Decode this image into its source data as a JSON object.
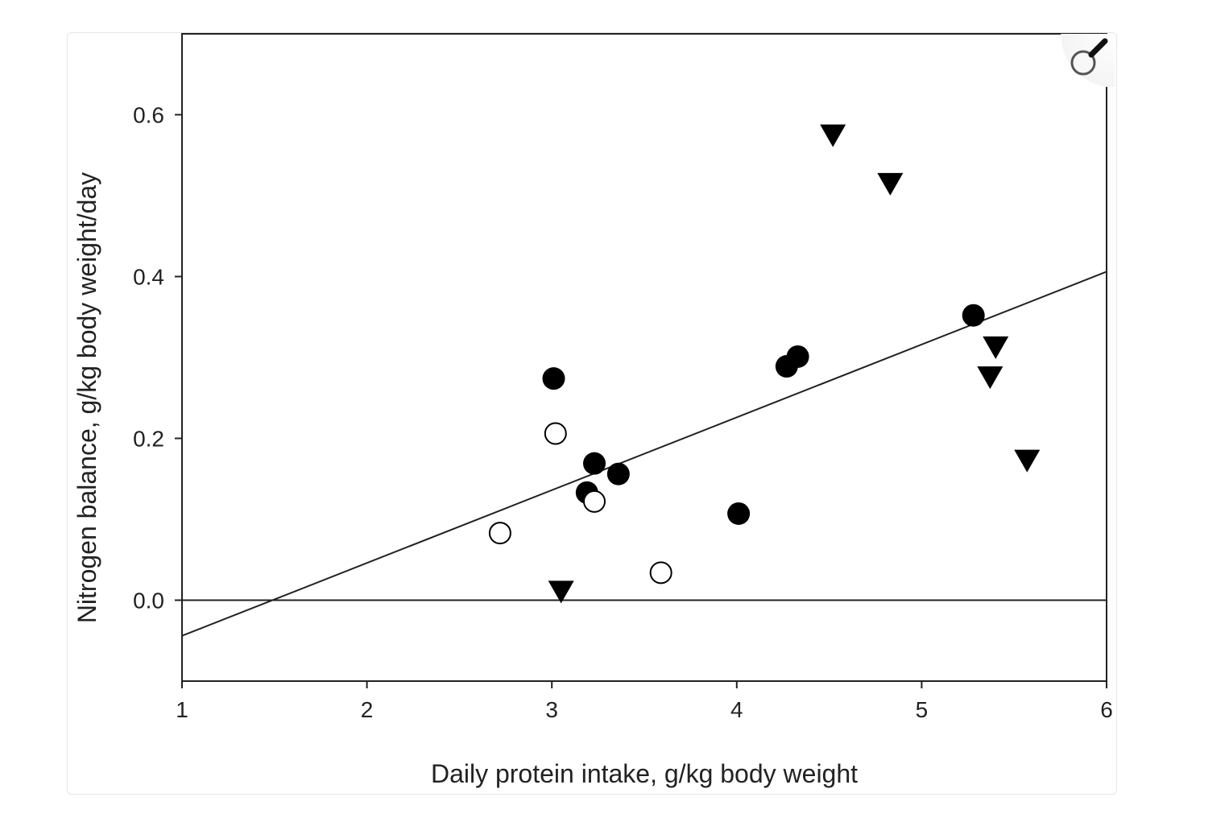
{
  "chart_data": {
    "type": "scatter",
    "title": "",
    "xlabel": "Daily protein intake, g/kg body weight",
    "ylabel": "Nitrogen balance, g/kg body weight/day",
    "xlim": [
      1,
      6
    ],
    "ylim": [
      -0.1,
      0.7
    ],
    "xticks": [
      "1",
      "2",
      "3",
      "4",
      "5",
      "6"
    ],
    "yticks": [
      "0.0",
      "0.2",
      "0.4",
      "0.6"
    ],
    "grid": false,
    "series": [
      {
        "name": "filled-circle",
        "marker": "filled-circle",
        "points": [
          [
            3.01,
            0.274
          ],
          [
            3.23,
            0.169
          ],
          [
            3.36,
            0.156
          ],
          [
            3.19,
            0.133
          ],
          [
            4.01,
            0.107
          ],
          [
            4.27,
            0.289
          ],
          [
            4.33,
            0.301
          ],
          [
            5.28,
            0.352
          ]
        ]
      },
      {
        "name": "open-circle",
        "marker": "open-circle",
        "points": [
          [
            3.02,
            0.206
          ],
          [
            3.23,
            0.122
          ],
          [
            2.72,
            0.083
          ],
          [
            3.59,
            0.034
          ]
        ]
      },
      {
        "name": "triangle",
        "marker": "filled-triangle-down",
        "points": [
          [
            4.52,
            0.577
          ],
          [
            4.83,
            0.517
          ],
          [
            5.4,
            0.315
          ],
          [
            5.37,
            0.278
          ],
          [
            5.57,
            0.175
          ],
          [
            3.05,
            0.013
          ]
        ]
      }
    ],
    "regression_line": [
      [
        1,
        -0.044
      ],
      [
        6,
        0.406
      ]
    ],
    "reference_line_y": 0
  },
  "icons": {
    "zoom": "magnifier-icon"
  }
}
